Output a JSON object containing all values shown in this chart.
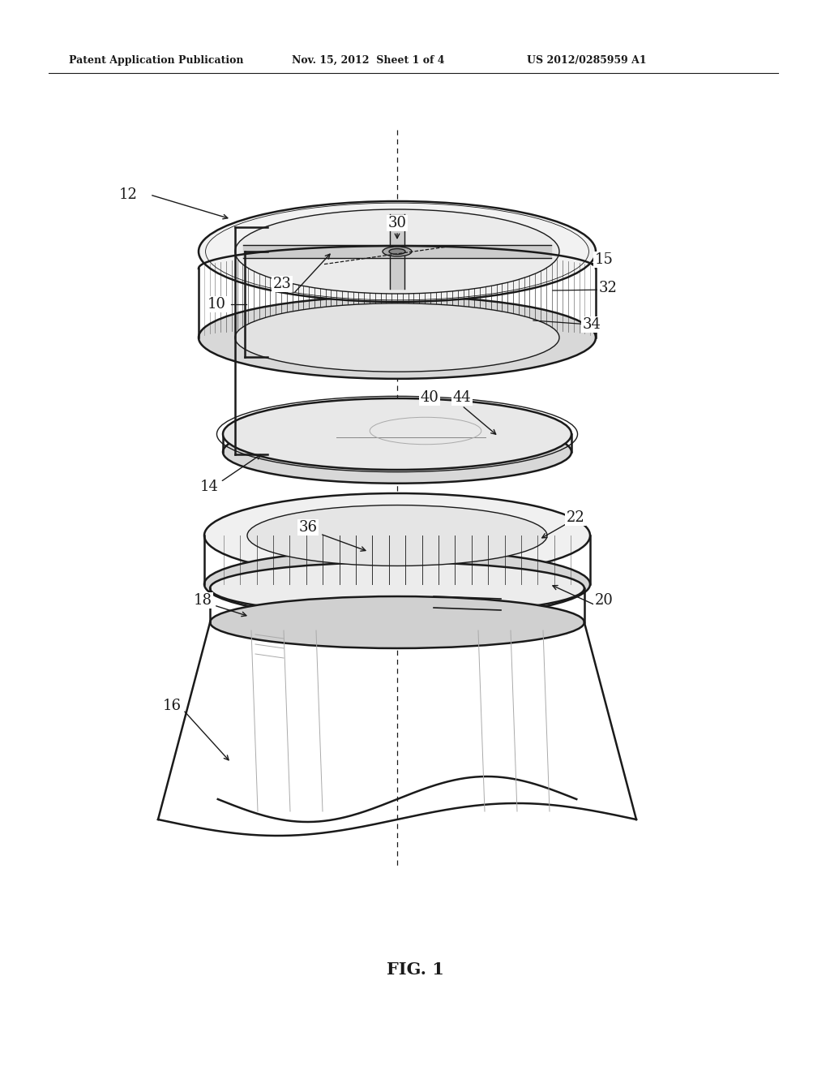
{
  "bg_color": "#ffffff",
  "line_color": "#1a1a1a",
  "light_gray": "#aaaaaa",
  "mid_gray": "#888888",
  "header_text": "Patent Application Publication",
  "header_date": "Nov. 15, 2012  Sheet 1 of 4",
  "header_patent": "US 2012/0285959 A1",
  "figure_label": "FIG. 1"
}
